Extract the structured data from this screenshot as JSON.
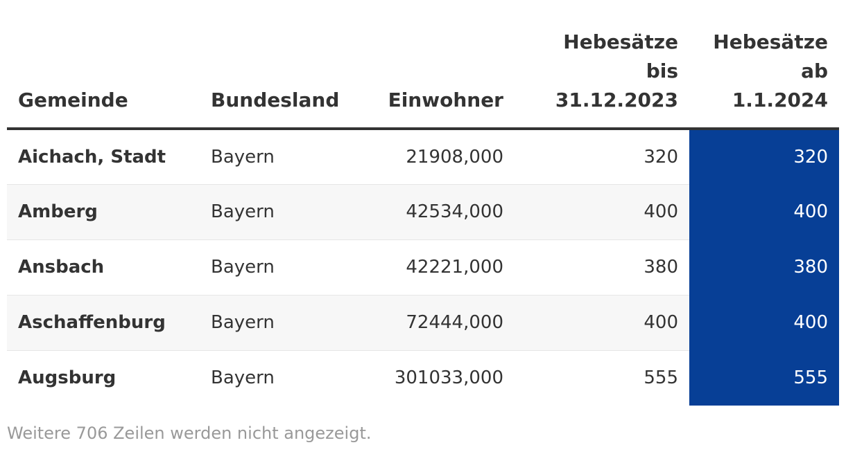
{
  "table": {
    "headers": {
      "gemeinde": "Gemeinde",
      "bundesland": "Bundesland",
      "einwohner": "Einwohner",
      "hebesaetze_bis": [
        "Hebesätze",
        "bis",
        "31.12.2023"
      ],
      "hebesaetze_ab": [
        "Hebesätze",
        "ab",
        "1.1.2024"
      ]
    },
    "rows": [
      {
        "gemeinde": "Aichach, Stadt",
        "bundesland": "Bayern",
        "einwohner": "21908,000",
        "bis": "320",
        "ab": "320"
      },
      {
        "gemeinde": "Amberg",
        "bundesland": "Bayern",
        "einwohner": "42534,000",
        "bis": "400",
        "ab": "400"
      },
      {
        "gemeinde": "Ansbach",
        "bundesland": "Bayern",
        "einwohner": "42221,000",
        "bis": "380",
        "ab": "380"
      },
      {
        "gemeinde": "Aschaffenburg",
        "bundesland": "Bayern",
        "einwohner": "72444,000",
        "bis": "400",
        "ab": "400"
      },
      {
        "gemeinde": "Augsburg",
        "bundesland": "Bayern",
        "einwohner": "301033,000",
        "bis": "555",
        "ab": "555"
      }
    ]
  },
  "footer": "Weitere 706 Zeilen werden nicht angezeigt.",
  "colors": {
    "highlight": "#073f96",
    "text": "#333333",
    "footer_text": "#999999",
    "stripe": "#f7f7f7"
  }
}
